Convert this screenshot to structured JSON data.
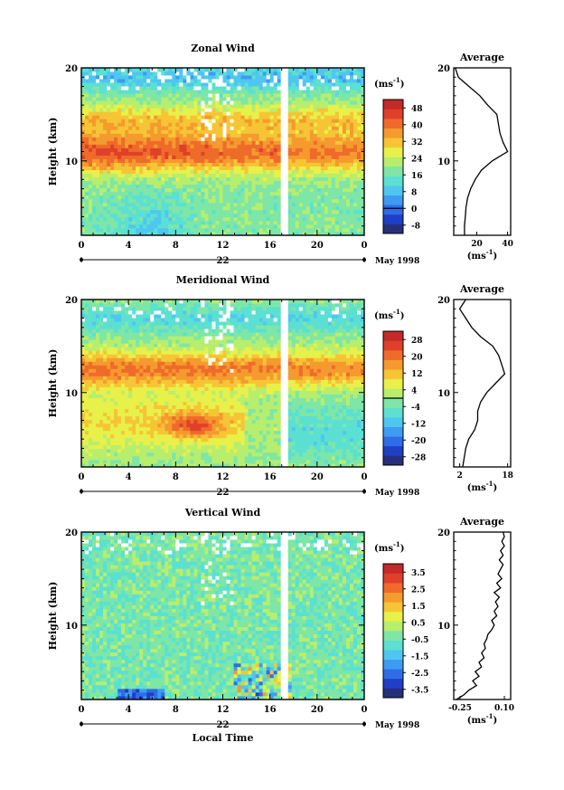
{
  "figure": {
    "xlabel_bottom": "Local Time",
    "date_label": "May 1998",
    "unit_label_main": "(ms",
    "unit_label_exp": "-1",
    "unit_label_close": ")"
  },
  "chart_data": [
    {
      "type": "heatmap",
      "id": "zonal",
      "title": "Zonal Wind",
      "ylabel": "Height (km)",
      "xlabel": "Local Time",
      "x_ticks": [
        "0",
        "4",
        "8",
        "12",
        "16",
        "20",
        "0"
      ],
      "x_range": [
        0,
        24
      ],
      "day_label": "22",
      "y_ticks": [
        "10",
        "20"
      ],
      "y_range": [
        2,
        20
      ],
      "colorbar": {
        "unit": "(ms-1)",
        "ticks": [
          "-8",
          "0",
          "8",
          "16",
          "24",
          "32",
          "40",
          "48"
        ],
        "range": [
          -12,
          52
        ],
        "zero_line": 0
      },
      "average_profile": {
        "title": "Average",
        "xlabel": "(ms-1)",
        "x_ticks": [
          "20",
          "40"
        ],
        "x_range": [
          5,
          42
        ],
        "y_ticks": [
          "10",
          "20"
        ],
        "height_km": [
          2,
          3,
          4,
          5,
          6,
          7,
          8,
          9,
          10,
          11,
          12,
          13,
          14,
          15,
          16,
          17,
          18,
          19,
          20
        ],
        "values": [
          12,
          12,
          12.5,
          13,
          14,
          16,
          19,
          23,
          30,
          40,
          37,
          35,
          34,
          33,
          27,
          22,
          15,
          8,
          6
        ]
      }
    },
    {
      "type": "heatmap",
      "id": "meridional",
      "title": "Meridional Wind",
      "ylabel": "Height (km)",
      "xlabel": "Local Time",
      "x_ticks": [
        "0",
        "4",
        "8",
        "12",
        "16",
        "20",
        "0"
      ],
      "x_range": [
        0,
        24
      ],
      "day_label": "22",
      "y_ticks": [
        "10",
        "20"
      ],
      "y_range": [
        2,
        20
      ],
      "colorbar": {
        "unit": "(ms-1)",
        "ticks": [
          "-28",
          "-20",
          "-12",
          "-4",
          "4",
          "12",
          "20",
          "28"
        ],
        "range": [
          -32,
          32
        ],
        "zero_line": 0
      },
      "average_profile": {
        "title": "Average",
        "xlabel": "(ms-1)",
        "x_ticks": [
          "2",
          "18"
        ],
        "x_range": [
          0,
          19
        ],
        "y_ticks": [
          "10",
          "20"
        ],
        "height_km": [
          2,
          3,
          4,
          5,
          6,
          7,
          8,
          9,
          10,
          11,
          12,
          13,
          14,
          15,
          16,
          17,
          18,
          19,
          20
        ],
        "values": [
          3,
          3.5,
          4,
          5,
          7,
          8,
          8,
          9,
          11,
          14,
          17,
          16,
          15,
          13,
          9,
          6,
          4,
          2,
          4
        ]
      }
    },
    {
      "type": "heatmap",
      "id": "vertical",
      "title": "Vertical Wind",
      "ylabel": "Height (km)",
      "xlabel": "Local Time",
      "x_ticks": [
        "0",
        "4",
        "8",
        "12",
        "16",
        "20",
        "0"
      ],
      "x_range": [
        0,
        24
      ],
      "day_label": "22",
      "y_ticks": [
        "10",
        "20"
      ],
      "y_range": [
        2,
        20
      ],
      "colorbar": {
        "unit": "(ms-1)",
        "ticks": [
          "-3.5",
          "-2.5",
          "-1.5",
          "-0.5",
          "0.5",
          "1.5",
          "2.5",
          "3.5"
        ],
        "range": [
          -4,
          4
        ],
        "zero_line": null
      },
      "average_profile": {
        "title": "Average",
        "xlabel": "(ms-1)",
        "x_ticks": [
          "-0.25",
          "0.10"
        ],
        "x_range": [
          -0.3,
          0.15
        ],
        "y_ticks": [
          "10",
          "20"
        ],
        "height_km": [
          2,
          2.5,
          3,
          3.5,
          4,
          4.5,
          5,
          5.5,
          6,
          6.5,
          7,
          7.5,
          8,
          8.5,
          9,
          9.5,
          10,
          10.5,
          11,
          11.5,
          12,
          12.5,
          13,
          13.5,
          14,
          14.5,
          15,
          15.5,
          16,
          16.5,
          17,
          17.5,
          18,
          18.5,
          19,
          19.5,
          20
        ],
        "values": [
          -0.28,
          -0.22,
          -0.18,
          -0.12,
          -0.15,
          -0.1,
          -0.13,
          -0.08,
          -0.1,
          -0.06,
          -0.08,
          -0.05,
          -0.06,
          -0.04,
          -0.03,
          0.0,
          0.02,
          0.0,
          0.04,
          0.02,
          0.05,
          0.03,
          0.06,
          0.02,
          0.07,
          0.04,
          0.08,
          0.05,
          0.07,
          0.09,
          0.06,
          0.09,
          0.07,
          0.1,
          0.08,
          0.1,
          0.09
        ]
      }
    }
  ]
}
